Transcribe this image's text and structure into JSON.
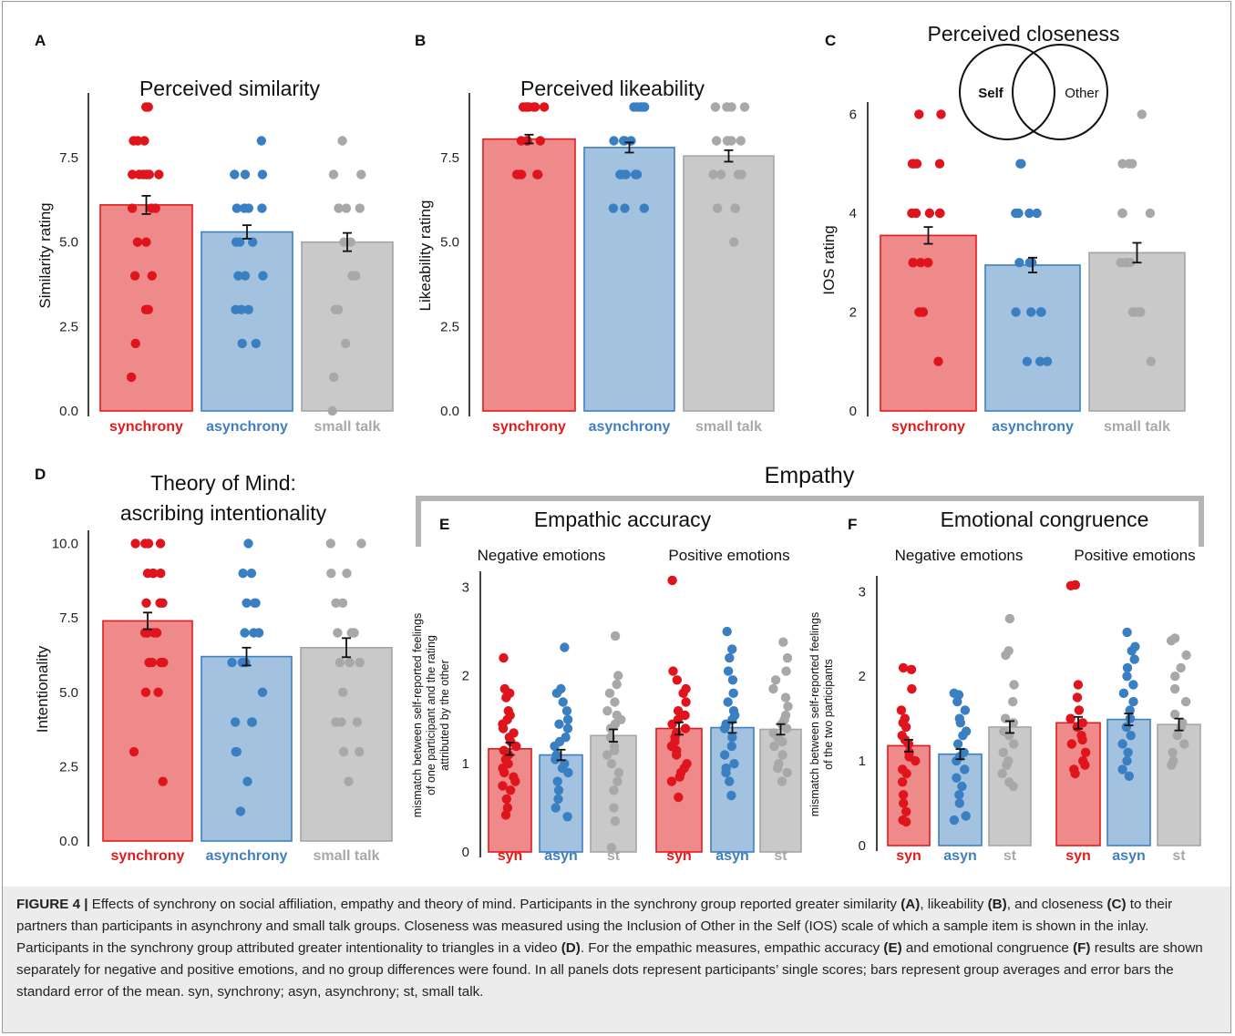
{
  "colors": {
    "synchrony_bar": "#ef8a8a",
    "synchrony_edge": "#e31a1c",
    "synchrony_dot": "#e0141c",
    "asynchrony_bar": "#a3c2e0",
    "asynchrony_edge": "#3f7fbf",
    "asynchrony_dot": "#3a7fc1",
    "smalltalk_bar": "#c9c9c9",
    "smalltalk_edge": "#a5a5a5",
    "smalltalk_dot": "#a8a8a8"
  },
  "empathy_heading": "Empathy",
  "inlay": {
    "self_label": "Self",
    "other_label": "Other"
  },
  "chart_data": [
    {
      "panel": "A",
      "type": "bar",
      "title": "Perceived similarity",
      "ylabel": "Similarity rating",
      "ylim": [
        0,
        9.2
      ],
      "yticks": [
        "0.0",
        "2.5",
        "5.0",
        "7.5"
      ],
      "ytick_values": [
        0,
        2.5,
        5,
        7.5
      ],
      "categories": [
        "synchrony",
        "asynchrony",
        "small talk"
      ],
      "values": [
        6.1,
        5.3,
        5.0
      ],
      "errors": [
        0.27,
        0.2,
        0.27
      ],
      "points": [
        [
          9,
          9,
          8,
          8,
          8,
          7,
          7,
          7,
          7,
          7,
          7,
          6,
          6,
          6,
          5,
          5,
          4,
          4,
          3,
          3,
          2,
          1
        ],
        [
          8,
          7,
          7,
          7,
          6,
          6,
          6,
          6,
          5,
          5,
          5,
          4,
          4,
          4,
          3,
          3,
          3,
          2,
          2
        ],
        [
          8,
          7,
          7,
          6,
          6,
          6,
          6,
          5,
          5,
          4,
          4,
          3,
          3,
          2,
          1,
          0
        ]
      ]
    },
    {
      "panel": "B",
      "type": "bar",
      "title": "Perceived likeability",
      "ylabel": "Likeability rating",
      "ylim": [
        0,
        9.2
      ],
      "yticks": [
        "0.0",
        "2.5",
        "5.0",
        "7.5"
      ],
      "ytick_values": [
        0,
        2.5,
        5,
        7.5
      ],
      "categories": [
        "synchrony",
        "asynchrony",
        "small talk"
      ],
      "values": [
        8.05,
        7.8,
        7.55
      ],
      "errors": [
        0.13,
        0.15,
        0.17
      ],
      "points": [
        [
          9,
          9,
          9,
          9,
          9,
          9,
          9,
          8,
          8,
          8,
          8,
          8,
          7,
          7,
          7,
          7,
          7
        ],
        [
          9,
          9,
          9,
          9,
          9,
          9,
          8,
          8,
          8,
          8,
          7,
          7,
          7,
          7,
          7,
          6,
          6,
          6
        ],
        [
          9,
          9,
          9,
          9,
          8,
          8,
          8,
          8,
          8,
          7,
          7,
          7,
          7,
          6,
          6,
          6,
          5
        ]
      ]
    },
    {
      "panel": "C",
      "type": "bar",
      "title": "Perceived closeness",
      "ylabel": "IOS rating",
      "ylim": [
        0,
        6.1
      ],
      "yticks": [
        "0",
        "2",
        "4",
        "6"
      ],
      "ytick_values": [
        0,
        2,
        4,
        6
      ],
      "categories": [
        "synchrony",
        "asynchrony",
        "small talk"
      ],
      "values": [
        3.55,
        2.95,
        3.2
      ],
      "errors": [
        0.17,
        0.15,
        0.2
      ],
      "points": [
        [
          6,
          6,
          5,
          5,
          5,
          5,
          4,
          4,
          4,
          4,
          4,
          3,
          3,
          3,
          3,
          3,
          2,
          2,
          2,
          1
        ],
        [
          5,
          5,
          4,
          4,
          4,
          4,
          3,
          3,
          3,
          2,
          2,
          2,
          2,
          1,
          1,
          1
        ],
        [
          6,
          5,
          5,
          5,
          4,
          4,
          4,
          3,
          3,
          3,
          2,
          2,
          2,
          2,
          1
        ]
      ]
    },
    {
      "panel": "D",
      "type": "bar",
      "title": "Theory of Mind:",
      "subtitle": "ascribing intentionality",
      "ylabel": "Intentionality",
      "ylim": [
        0,
        10.2
      ],
      "yticks": [
        "0.0",
        "2.5",
        "5.0",
        "7.5",
        "10.0"
      ],
      "ytick_values": [
        0,
        2.5,
        5,
        7.5,
        10
      ],
      "categories": [
        "synchrony",
        "asynchrony",
        "small talk"
      ],
      "values": [
        7.4,
        6.2,
        6.5
      ],
      "errors": [
        0.28,
        0.3,
        0.32
      ],
      "points": [
        [
          10,
          10,
          10,
          10,
          9,
          9,
          9,
          9,
          8,
          8,
          8,
          7,
          7,
          7,
          7,
          6,
          6,
          6,
          6,
          5,
          5,
          3,
          2
        ],
        [
          10,
          9,
          9,
          8,
          8,
          8,
          7,
          7,
          7,
          6,
          6,
          6,
          5,
          4,
          4,
          4,
          3,
          3,
          2,
          1
        ],
        [
          10,
          10,
          9,
          9,
          8,
          8,
          7,
          7,
          7,
          6,
          6,
          6,
          5,
          4,
          4,
          4,
          3,
          3,
          2
        ]
      ]
    },
    {
      "panel": "E",
      "type": "bar",
      "title": "Empathic accuracy",
      "ylabel_lines": [
        "mismatch between self-reported feelings",
        "of one participant and the rating",
        "attributed by the other"
      ],
      "ylim": [
        0,
        3.1
      ],
      "yticks": [
        "0",
        "1",
        "2",
        "3"
      ],
      "ytick_values": [
        0,
        1,
        2,
        3
      ],
      "groups": [
        {
          "label": "Negative emotions",
          "categories": [
            "syn",
            "asyn",
            "st"
          ],
          "values": [
            1.17,
            1.1,
            1.32
          ],
          "errors": [
            0.07,
            0.06,
            0.07
          ],
          "points": [
            [
              2.2,
              1.85,
              1.8,
              1.75,
              1.6,
              1.55,
              1.5,
              1.45,
              1.4,
              1.35,
              1.3,
              1.25,
              1.2,
              1.15,
              1.1,
              1.05,
              1.0,
              0.95,
              0.9,
              0.85,
              0.8,
              0.75,
              0.7,
              0.6,
              0.5,
              0.42
            ],
            [
              2.32,
              1.85,
              1.8,
              1.7,
              1.6,
              1.5,
              1.45,
              1.4,
              1.3,
              1.25,
              1.2,
              1.1,
              1.05,
              1.0,
              0.95,
              0.9,
              0.8,
              0.7,
              0.6,
              0.5,
              0.4
            ],
            [
              2.45,
              2.0,
              1.9,
              1.8,
              1.7,
              1.6,
              1.55,
              1.5,
              1.45,
              1.4,
              1.3,
              1.2,
              1.15,
              1.1,
              1.0,
              0.9,
              0.8,
              0.7,
              0.5,
              0.35,
              0.05
            ]
          ]
        },
        {
          "label": "Positive emotions",
          "categories": [
            "syn",
            "asyn",
            "st"
          ],
          "values": [
            1.4,
            1.41,
            1.39
          ],
          "errors": [
            0.07,
            0.06,
            0.06
          ],
          "points": [
            [
              3.08,
              2.05,
              1.95,
              1.85,
              1.8,
              1.7,
              1.6,
              1.55,
              1.5,
              1.45,
              1.4,
              1.35,
              1.3,
              1.25,
              1.2,
              1.15,
              1.1,
              1.0,
              0.95,
              0.9,
              0.85,
              0.8,
              0.62
            ],
            [
              2.5,
              2.3,
              2.2,
              2.05,
              1.95,
              1.8,
              1.7,
              1.6,
              1.55,
              1.5,
              1.45,
              1.4,
              1.3,
              1.2,
              1.1,
              1.0,
              0.95,
              0.9,
              0.8,
              0.64
            ],
            [
              2.38,
              2.2,
              2.05,
              1.95,
              1.85,
              1.75,
              1.65,
              1.55,
              1.5,
              1.45,
              1.4,
              1.35,
              1.3,
              1.25,
              1.2,
              1.1,
              1.0,
              0.95,
              0.9,
              0.8
            ]
          ]
        }
      ]
    },
    {
      "panel": "F",
      "type": "bar",
      "title": "Emotional congruence",
      "ylabel_lines": [
        "mismatch between self-reported feelings",
        "of the two participants"
      ],
      "ylim": [
        0,
        3.1
      ],
      "yticks": [
        "0",
        "1",
        "2",
        "3"
      ],
      "ytick_values": [
        0,
        1,
        2,
        3
      ],
      "groups": [
        {
          "label": "Negative emotions",
          "categories": [
            "syn",
            "asyn",
            "st"
          ],
          "values": [
            1.18,
            1.08,
            1.4
          ],
          "errors": [
            0.07,
            0.06,
            0.07
          ],
          "points": [
            [
              2.1,
              2.08,
              1.85,
              1.6,
              1.5,
              1.45,
              1.4,
              1.3,
              1.25,
              1.2,
              1.1,
              1.05,
              1.0,
              0.9,
              0.85,
              0.75,
              0.6,
              0.5,
              0.4,
              0.3,
              0.28
            ],
            [
              1.8,
              1.78,
              1.7,
              1.6,
              1.5,
              1.45,
              1.35,
              1.3,
              1.2,
              1.1,
              1.05,
              1.0,
              0.9,
              0.8,
              0.7,
              0.6,
              0.5,
              0.35,
              0.3
            ],
            [
              2.68,
              2.3,
              2.25,
              1.9,
              1.7,
              1.5,
              1.45,
              1.35,
              1.3,
              1.2,
              1.1,
              1.0,
              0.95,
              0.85,
              0.75,
              0.7
            ]
          ]
        },
        {
          "label": "Positive emotions",
          "categories": [
            "syn",
            "asyn",
            "st"
          ],
          "values": [
            1.45,
            1.49,
            1.43
          ],
          "errors": [
            0.07,
            0.07,
            0.07
          ],
          "points": [
            [
              3.08,
              3.07,
              1.9,
              1.75,
              1.6,
              1.5,
              1.45,
              1.4,
              1.3,
              1.25,
              1.2,
              1.1,
              1.0,
              0.95,
              0.9,
              0.85
            ],
            [
              2.52,
              2.35,
              2.3,
              2.2,
              2.1,
              2.0,
              1.9,
              1.8,
              1.7,
              1.6,
              1.5,
              1.4,
              1.3,
              1.2,
              1.1,
              1.0,
              0.9,
              0.82
            ],
            [
              2.45,
              2.42,
              2.25,
              2.1,
              2.0,
              1.85,
              1.7,
              1.55,
              1.45,
              1.4,
              1.3,
              1.2,
              1.1,
              1.0,
              0.95
            ]
          ]
        }
      ]
    }
  ],
  "caption": {
    "label": "FIGURE 4 |",
    "text_1": " Effects of synchrony on social affiliation, empathy and theory of mind. Participants in the synchrony group reported greater similarity ",
    "ref_a": "(A)",
    "text_2": ", likeability ",
    "ref_b": "(B)",
    "text_3": ", and closeness ",
    "ref_c": "(C)",
    "text_4": " to their partners than participants in asynchrony and small talk groups. Closeness was measured using the Inclusion of Other in the Self (IOS) scale of which a sample item is shown in the inlay. Participants in the synchrony group attributed greater intentionality to triangles in a video ",
    "ref_d": "(D)",
    "text_5": ". For the empathic measures, empathic accuracy ",
    "ref_e": "(E)",
    "text_6": " and emotional congruence ",
    "ref_f": "(F)",
    "text_7": " results are shown separately for negative and positive emotions, and no group differences were found. In all panels dots represent participants’ single scores; bars represent group averages and error bars the standard error of the mean. syn, synchrony; asyn, asynchrony; st, small talk."
  }
}
